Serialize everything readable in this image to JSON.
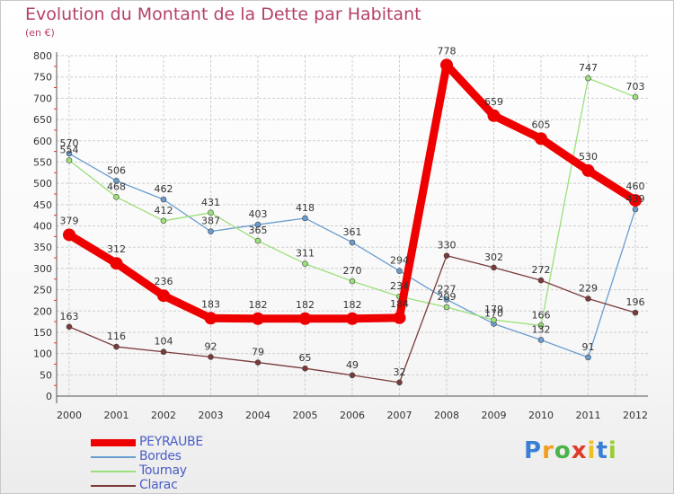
{
  "page": {
    "title": "Evolution du Montant de la Dette par Habitant",
    "subtitle": "(en €)"
  },
  "chart_data": {
    "type": "line",
    "title": "Evolution du Montant de la Dette par Habitant",
    "subtitle": "(en €)",
    "xlabel": "",
    "ylabel": "",
    "x": [
      "2000",
      "2001",
      "2002",
      "2003",
      "2004",
      "2005",
      "2006",
      "2007",
      "2008",
      "2009",
      "2010",
      "2011",
      "2012"
    ],
    "ylim": [
      0,
      800
    ],
    "yticks": [
      0,
      50,
      100,
      150,
      200,
      250,
      300,
      350,
      400,
      450,
      500,
      550,
      600,
      650,
      700,
      750,
      800
    ],
    "grid": true,
    "legend": "bottom-left",
    "series": [
      {
        "name": "PEYRAUBE",
        "color": "#ee0000",
        "values": [
          379,
          312,
          236,
          183,
          182,
          182,
          182,
          184,
          778,
          659,
          605,
          530,
          460
        ]
      },
      {
        "name": "Bordes",
        "color": "#6a9dcf",
        "values": [
          570,
          506,
          462,
          387,
          403,
          418,
          361,
          294,
          227,
          170,
          132,
          91,
          439
        ]
      },
      {
        "name": "Tournay",
        "color": "#9be07a",
        "values": [
          554,
          468,
          412,
          431,
          365,
          311,
          270,
          234,
          209,
          179,
          166,
          747,
          703
        ]
      },
      {
        "name": "Clarac",
        "color": "#7a3a3a",
        "values": [
          163,
          116,
          104,
          92,
          79,
          65,
          49,
          32,
          330,
          302,
          272,
          229,
          196
        ]
      }
    ]
  },
  "logo": {
    "letters": [
      "P",
      "r",
      "o",
      "x",
      "i",
      "t",
      "i"
    ],
    "colors": [
      "#3b7fd4",
      "#f0a020",
      "#4bb34b",
      "#e03a2a",
      "#f0c020",
      "#3b7fd4",
      "#9acd32"
    ]
  }
}
